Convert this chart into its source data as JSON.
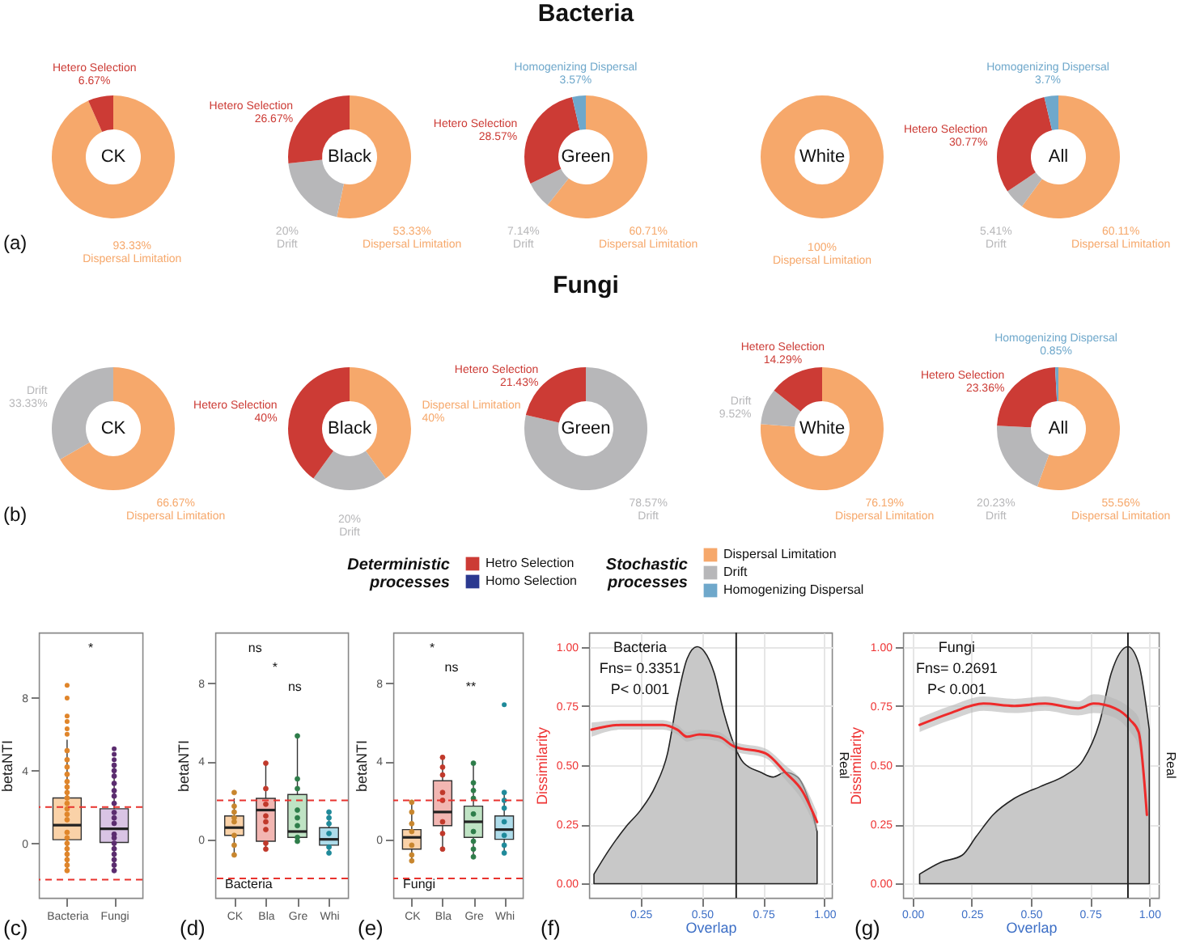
{
  "chart_data": [
    {
      "type": "donut",
      "title": "CK",
      "categories": [
        "Dispersal Limitation",
        "Hetero Selection"
      ],
      "values": [
        93.33,
        6.67
      ],
      "colors": [
        "#f6a86b",
        "#cc3b35"
      ],
      "value_labels": [
        "93.33%",
        "6.67%"
      ],
      "annotations": [
        "(a)"
      ]
    },
    {
      "type": "donut",
      "title": "Black",
      "categories": [
        "Dispersal Limitation",
        "Drift",
        "Hetero Selection"
      ],
      "values": [
        53.33,
        20,
        26.67
      ],
      "colors": [
        "#f6a86b",
        "#b7b7b9",
        "#cc3b35"
      ],
      "value_labels": [
        "53.33%",
        "20%",
        "26.67%"
      ]
    },
    {
      "type": "donut",
      "title": "Green",
      "subtitle": "Bacteria",
      "categories": [
        "Dispersal Limitation",
        "Drift",
        "Hetero Selection",
        "Homogenizing Dispersal"
      ],
      "values": [
        60.71,
        7.14,
        28.57,
        3.57
      ],
      "colors": [
        "#f6a86b",
        "#b7b7b9",
        "#cc3b35",
        "#6fa8cb"
      ],
      "value_labels": [
        "60.71%",
        "7.14%",
        "28.57%",
        "3.57%"
      ]
    },
    {
      "type": "donut",
      "title": "White",
      "categories": [
        "Dispersal Limitation"
      ],
      "values": [
        100
      ],
      "colors": [
        "#f6a86b"
      ],
      "value_labels": [
        "100%"
      ]
    },
    {
      "type": "donut",
      "title": "All",
      "categories": [
        "Dispersal Limitation",
        "Drift",
        "Hetero Selection",
        "Homogenizing Dispersal"
      ],
      "values": [
        60.11,
        5.41,
        30.77,
        3.7
      ],
      "colors": [
        "#f6a86b",
        "#b7b7b9",
        "#cc3b35",
        "#6fa8cb"
      ],
      "value_labels": [
        "60.11%",
        "5.41%",
        "30.77%",
        "3.7%"
      ]
    },
    {
      "type": "donut",
      "title": "CK",
      "categories": [
        "Dispersal Limitation",
        "Drift"
      ],
      "values": [
        66.67,
        33.33
      ],
      "colors": [
        "#f6a86b",
        "#b7b7b9"
      ],
      "value_labels": [
        "66.67%",
        "33.33%"
      ],
      "annotations": [
        "(b)"
      ]
    },
    {
      "type": "donut",
      "title": "Black",
      "categories": [
        "Dispersal Limitation",
        "Drift",
        "Hetero Selection"
      ],
      "values": [
        40,
        20,
        40
      ],
      "colors": [
        "#f6a86b",
        "#b7b7b9",
        "#cc3b35"
      ],
      "value_labels": [
        "40%",
        "20%",
        "40%"
      ]
    },
    {
      "type": "donut",
      "title": "Green",
      "subtitle": "Fungi",
      "categories": [
        "Drift",
        "Hetero Selection"
      ],
      "values": [
        78.57,
        21.43
      ],
      "colors": [
        "#b7b7b9",
        "#cc3b35"
      ],
      "value_labels": [
        "78.57%",
        "21.43%"
      ]
    },
    {
      "type": "donut",
      "title": "White",
      "categories": [
        "Dispersal Limitation",
        "Drift",
        "Hetero Selection"
      ],
      "values": [
        76.19,
        9.52,
        14.29
      ],
      "colors": [
        "#f6a86b",
        "#b7b7b9",
        "#cc3b35"
      ],
      "value_labels": [
        "76.19%",
        "9.52%",
        "14.29%"
      ]
    },
    {
      "type": "donut",
      "title": "All",
      "categories": [
        "Dispersal Limitation",
        "Drift",
        "Hetero Selection",
        "Homogenizing Dispersal"
      ],
      "values": [
        55.56,
        20.23,
        23.36,
        0.85
      ],
      "colors": [
        "#f6a86b",
        "#b7b7b9",
        "#cc3b35",
        "#6fa8cb"
      ],
      "value_labels": [
        "55.56%",
        "20.23%",
        "23.36%",
        "0.85%"
      ]
    },
    {
      "type": "other",
      "title": "Deterministic processes",
      "categories": [
        "Hetro Selection",
        "Homo Selection"
      ],
      "colors": [
        "#cc3b35",
        "#2b3990"
      ]
    },
    {
      "type": "other",
      "title": "Stochastic processes",
      "categories": [
        "Dispersal Limitation",
        "Drift",
        "Homogenizing Dispersal"
      ],
      "colors": [
        "#f6a86b",
        "#b7b7b9",
        "#6fa8cb"
      ]
    },
    {
      "type": "box",
      "categories": [
        "Bacteria",
        "Fungi"
      ],
      "ylabel": "betaNTI",
      "ylim": [
        -3,
        11.6
      ],
      "yticks": [
        0,
        4,
        8
      ],
      "colors": [
        "#fad2a8",
        "#d9c4e4"
      ],
      "boxes": [
        {
          "low": -1.5,
          "q1": 0.2,
          "median": 1.0,
          "q3": 2.5,
          "high": 5.7,
          "outliers": [
            6.0,
            6.3,
            6.7,
            7.0,
            8.0,
            8.7
          ]
        },
        {
          "low": -1.5,
          "q1": 0.05,
          "median": 0.8,
          "q3": 1.9,
          "high": 4.3,
          "outliers": [
            4.6,
            4.9,
            5.2
          ]
        }
      ],
      "series": [
        {
          "type": "scatter",
          "color": "#e0852a",
          "x": [
            "Bacteria",
            "Bacteria",
            "Bacteria",
            "Bacteria",
            "Bacteria",
            "Bacteria",
            "Bacteria",
            "Bacteria",
            "Bacteria",
            "Bacteria",
            "Bacteria",
            "Bacteria",
            "Bacteria",
            "Bacteria",
            "Bacteria",
            "Bacteria",
            "Bacteria",
            "Bacteria",
            "Bacteria",
            "Bacteria"
          ],
          "values": [
            -1.5,
            -1.2,
            -0.9,
            -0.6,
            -0.3,
            0.0,
            0.3,
            0.6,
            1.3,
            1.6,
            1.9,
            2.2,
            2.5,
            2.8,
            3.1,
            3.4,
            3.8,
            4.2,
            4.6,
            5.1
          ]
        },
        {
          "type": "scatter",
          "color": "#5b2c6f",
          "x": [
            "Fungi",
            "Fungi",
            "Fungi",
            "Fungi",
            "Fungi",
            "Fungi",
            "Fungi",
            "Fungi",
            "Fungi",
            "Fungi",
            "Fungi",
            "Fungi",
            "Fungi",
            "Fungi",
            "Fungi",
            "Fungi",
            "Fungi",
            "Fungi"
          ],
          "values": [
            -1.5,
            -1.2,
            -0.9,
            -0.6,
            -0.3,
            0.0,
            0.3,
            0.5,
            1.1,
            1.4,
            1.7,
            2.2,
            2.6,
            2.9,
            3.3,
            3.7,
            4.0,
            4.3
          ]
        }
      ],
      "ref_lines": [
        {
          "axis": "y",
          "value": 2,
          "color": "#e8332e",
          "line_style": "dashed"
        },
        {
          "axis": "y",
          "value": -2,
          "color": "#e8332e",
          "line_style": "dashed"
        }
      ],
      "annotations": [
        "*",
        "(c)"
      ]
    },
    {
      "type": "box",
      "categories": [
        "CK",
        "Bla",
        "Gre",
        "Whi"
      ],
      "ylabel": "betaNTI",
      "ylim": [
        -3,
        10.6
      ],
      "yticks": [
        0,
        4,
        8
      ],
      "colors": [
        "#fad2a8",
        "#f2b6b2",
        "#bfe3c4",
        "#aedcea"
      ],
      "boxes": [
        {
          "low": -0.8,
          "q1": 0.2,
          "median": 0.6,
          "q3": 1.2,
          "high": 2.1
        },
        {
          "low": -0.6,
          "q1": -0.1,
          "median": 1.5,
          "q3": 2.1,
          "high": 3.9
        },
        {
          "low": -0.2,
          "q1": 0.1,
          "median": 0.4,
          "q3": 2.3,
          "high": 5.3
        },
        {
          "low": -0.7,
          "q1": -0.3,
          "median": 0.0,
          "q3": 0.6,
          "high": 1.4
        }
      ],
      "series": [
        {
          "type": "scatter",
          "color": "#c8862e",
          "x": [
            "CK",
            "CK",
            "CK",
            "CK",
            "CK",
            "CK",
            "CK",
            "CK"
          ],
          "values": [
            -0.8,
            -0.3,
            0.2,
            0.9,
            1.1,
            1.4,
            1.7,
            2.4
          ]
        },
        {
          "type": "scatter",
          "color": "#c0392b",
          "x": [
            "Bla",
            "Bla",
            "Bla",
            "Bla",
            "Bla",
            "Bla",
            "Bla",
            "Bla"
          ],
          "values": [
            -0.5,
            -0.2,
            0.5,
            0.9,
            1.2,
            1.8,
            2.6,
            3.9
          ]
        },
        {
          "type": "scatter",
          "color": "#2e7d4a",
          "x": [
            "Gre",
            "Gre",
            "Gre",
            "Gre",
            "Gre",
            "Gre",
            "Gre",
            "Gre"
          ],
          "values": [
            -0.1,
            0.1,
            0.7,
            1.1,
            1.5,
            2.6,
            3.1,
            5.3
          ]
        },
        {
          "type": "scatter",
          "color": "#1f8a9a",
          "x": [
            "Whi",
            "Whi",
            "Whi",
            "Whi",
            "Whi",
            "Whi"
          ],
          "values": [
            -0.7,
            -0.4,
            0.3,
            0.8,
            1.1,
            1.4
          ]
        }
      ],
      "ref_lines": [
        {
          "axis": "y",
          "value": 2,
          "color": "#e8332e",
          "line_style": "dashed"
        },
        {
          "axis": "y",
          "value": -2,
          "color": "#e8332e",
          "line_style": "dashed"
        }
      ],
      "subtitle": "Bacteria",
      "annotations": [
        "ns",
        "*",
        "ns",
        "(d)"
      ]
    },
    {
      "type": "box",
      "categories": [
        "CK",
        "Bla",
        "Gre",
        "Whi"
      ],
      "ylabel": "betaNTI",
      "ylim": [
        -3,
        10.6
      ],
      "yticks": [
        0,
        4,
        8
      ],
      "colors": [
        "#fad2a8",
        "#f2b6b2",
        "#bfe3c4",
        "#aedcea"
      ],
      "boxes": [
        {
          "low": -1.1,
          "q1": -0.5,
          "median": 0.1,
          "q3": 0.5,
          "high": 1.9
        },
        {
          "low": -0.5,
          "q1": 0.7,
          "median": 1.4,
          "q3": 3.0,
          "high": 4.3
        },
        {
          "low": -0.9,
          "q1": 0.1,
          "median": 0.9,
          "q3": 1.7,
          "high": 3.9
        },
        {
          "low": -0.7,
          "q1": 0.0,
          "median": 0.5,
          "q3": 1.2,
          "high": 2.4,
          "outliers": [
            6.9
          ]
        }
      ],
      "series": [
        {
          "type": "scatter",
          "color": "#c8862e",
          "x": [
            "CK",
            "CK",
            "CK",
            "CK",
            "CK",
            "CK",
            "CK"
          ],
          "values": [
            -1.1,
            -0.8,
            -0.3,
            0.4,
            0.8,
            1.4,
            1.9
          ]
        },
        {
          "type": "scatter",
          "color": "#c0392b",
          "x": [
            "Bla",
            "Bla",
            "Bla",
            "Bla",
            "Bla",
            "Bla",
            "Bla",
            "Bla"
          ],
          "values": [
            -0.5,
            0.3,
            0.9,
            2.0,
            2.4,
            3.3,
            3.7,
            4.2
          ]
        },
        {
          "type": "scatter",
          "color": "#2e7d4a",
          "x": [
            "Gre",
            "Gre",
            "Gre",
            "Gre",
            "Gre",
            "Gre",
            "Gre",
            "Gre",
            "Gre"
          ],
          "values": [
            -0.9,
            -0.5,
            -0.1,
            0.4,
            1.3,
            2.1,
            2.5,
            2.9,
            3.9
          ]
        },
        {
          "type": "scatter",
          "color": "#1f8a9a",
          "x": [
            "Whi",
            "Whi",
            "Whi",
            "Whi",
            "Whi",
            "Whi",
            "Whi"
          ],
          "values": [
            -0.7,
            -0.3,
            0.2,
            0.9,
            1.6,
            2.0,
            2.4
          ]
        }
      ],
      "ref_lines": [
        {
          "axis": "y",
          "value": 2,
          "color": "#e8332e",
          "line_style": "dashed"
        },
        {
          "axis": "y",
          "value": -2,
          "color": "#e8332e",
          "line_style": "dashed"
        }
      ],
      "subtitle": "Fungi",
      "annotations": [
        "*",
        "ns",
        "**",
        "(e)"
      ]
    },
    {
      "type": "line",
      "xlabel": "Overlap",
      "ylabel": "Dissimilarity",
      "y2label": "Real",
      "xlim": [
        0.04,
        1.03
      ],
      "ylim": [
        -0.06,
        1.06
      ],
      "xticks": [
        {
          "value": 0.25,
          "label": "0.25"
        },
        {
          "value": 0.5,
          "label": "0.50"
        },
        {
          "value": 0.75,
          "label": "0.75"
        },
        {
          "value": 1,
          "label": "1.00"
        }
      ],
      "yticks": [
        {
          "value": 0,
          "label": "0.00"
        },
        {
          "value": 0.25,
          "label": "0.25"
        },
        {
          "value": 0.5,
          "label": "0.50"
        },
        {
          "value": 0.75,
          "label": "0.75"
        },
        {
          "value": 1,
          "label": "1.00"
        }
      ],
      "grid": true,
      "series": [
        {
          "type": "area",
          "color": "#c8c8c8",
          "x": [
            0.06,
            0.12,
            0.19,
            0.25,
            0.31,
            0.36,
            0.4,
            0.44,
            0.48,
            0.51,
            0.55,
            0.59,
            0.63,
            0.67,
            0.74,
            0.79,
            0.84,
            0.89,
            0.93,
            0.97
          ],
          "values": [
            0.04,
            0.14,
            0.24,
            0.31,
            0.41,
            0.55,
            0.78,
            0.95,
            1.0,
            0.98,
            0.89,
            0.72,
            0.59,
            0.51,
            0.47,
            0.45,
            0.47,
            0.45,
            0.37,
            0.22
          ]
        },
        {
          "type": "line",
          "color": "#ee2b2b",
          "x": [
            0.05,
            0.17,
            0.34,
            0.4,
            0.44,
            0.49,
            0.57,
            0.63,
            0.76,
            0.84,
            0.91,
            0.97
          ],
          "values": [
            0.65,
            0.67,
            0.67,
            0.65,
            0.62,
            0.63,
            0.62,
            0.58,
            0.55,
            0.47,
            0.39,
            0.26
          ],
          "lower": [
            0.62,
            0.65,
            0.65,
            0.63,
            0.6,
            0.61,
            0.6,
            0.56,
            0.53,
            0.44,
            0.35,
            0.22
          ],
          "upper": [
            0.68,
            0.69,
            0.69,
            0.67,
            0.64,
            0.65,
            0.64,
            0.6,
            0.57,
            0.5,
            0.43,
            0.3
          ]
        }
      ],
      "ref_lines": [
        {
          "axis": "x",
          "value": 0.64,
          "color": "#222222"
        }
      ],
      "annotations": [
        "Bacteria",
        "Fns= 0.3351",
        "P< 0.001",
        "(f)"
      ]
    },
    {
      "type": "line",
      "xlabel": "Overlap",
      "ylabel": "Dissimilarity",
      "y2label": "Real",
      "xlim": [
        -0.04,
        1.04
      ],
      "ylim": [
        -0.06,
        1.06
      ],
      "xticks": [
        {
          "value": 0,
          "label": "0.00"
        },
        {
          "value": 0.25,
          "label": "0.25"
        },
        {
          "value": 0.5,
          "label": "0.50"
        },
        {
          "value": 0.75,
          "label": "0.75"
        },
        {
          "value": 1,
          "label": "1.00"
        }
      ],
      "yticks": [
        {
          "value": 0,
          "label": "0.00"
        },
        {
          "value": 0.25,
          "label": "0.25"
        },
        {
          "value": 0.5,
          "label": "0.50"
        },
        {
          "value": 0.75,
          "label": "0.75"
        },
        {
          "value": 1,
          "label": "1.00"
        }
      ],
      "grid": true,
      "series": [
        {
          "type": "area",
          "color": "#c8c8c8",
          "x": [
            0.03,
            0.12,
            0.21,
            0.27,
            0.34,
            0.43,
            0.54,
            0.65,
            0.72,
            0.79,
            0.84,
            0.91,
            0.955,
            1.0
          ],
          "values": [
            0.04,
            0.09,
            0.12,
            0.2,
            0.29,
            0.36,
            0.41,
            0.46,
            0.52,
            0.68,
            0.89,
            1.0,
            0.93,
            0.65
          ]
        },
        {
          "type": "line",
          "color": "#ee2b2b",
          "x": [
            0.03,
            0.16,
            0.3,
            0.43,
            0.56,
            0.7,
            0.765,
            0.855,
            0.92,
            0.955,
            0.99
          ],
          "values": [
            0.67,
            0.72,
            0.76,
            0.75,
            0.76,
            0.74,
            0.76,
            0.74,
            0.69,
            0.64,
            0.29
          ],
          "lower": [
            0.64,
            0.69,
            0.73,
            0.72,
            0.73,
            0.71,
            0.72,
            0.7,
            0.64,
            0.58,
            0.25
          ],
          "upper": [
            0.7,
            0.75,
            0.79,
            0.78,
            0.79,
            0.77,
            0.8,
            0.78,
            0.74,
            0.7,
            0.33
          ]
        }
      ],
      "ref_lines": [
        {
          "axis": "x",
          "value": 0.91,
          "color": "#222222"
        }
      ],
      "annotations": [
        "Fungi",
        "Fns= 0.2691",
        "P< 0.001",
        "(g)"
      ]
    }
  ]
}
